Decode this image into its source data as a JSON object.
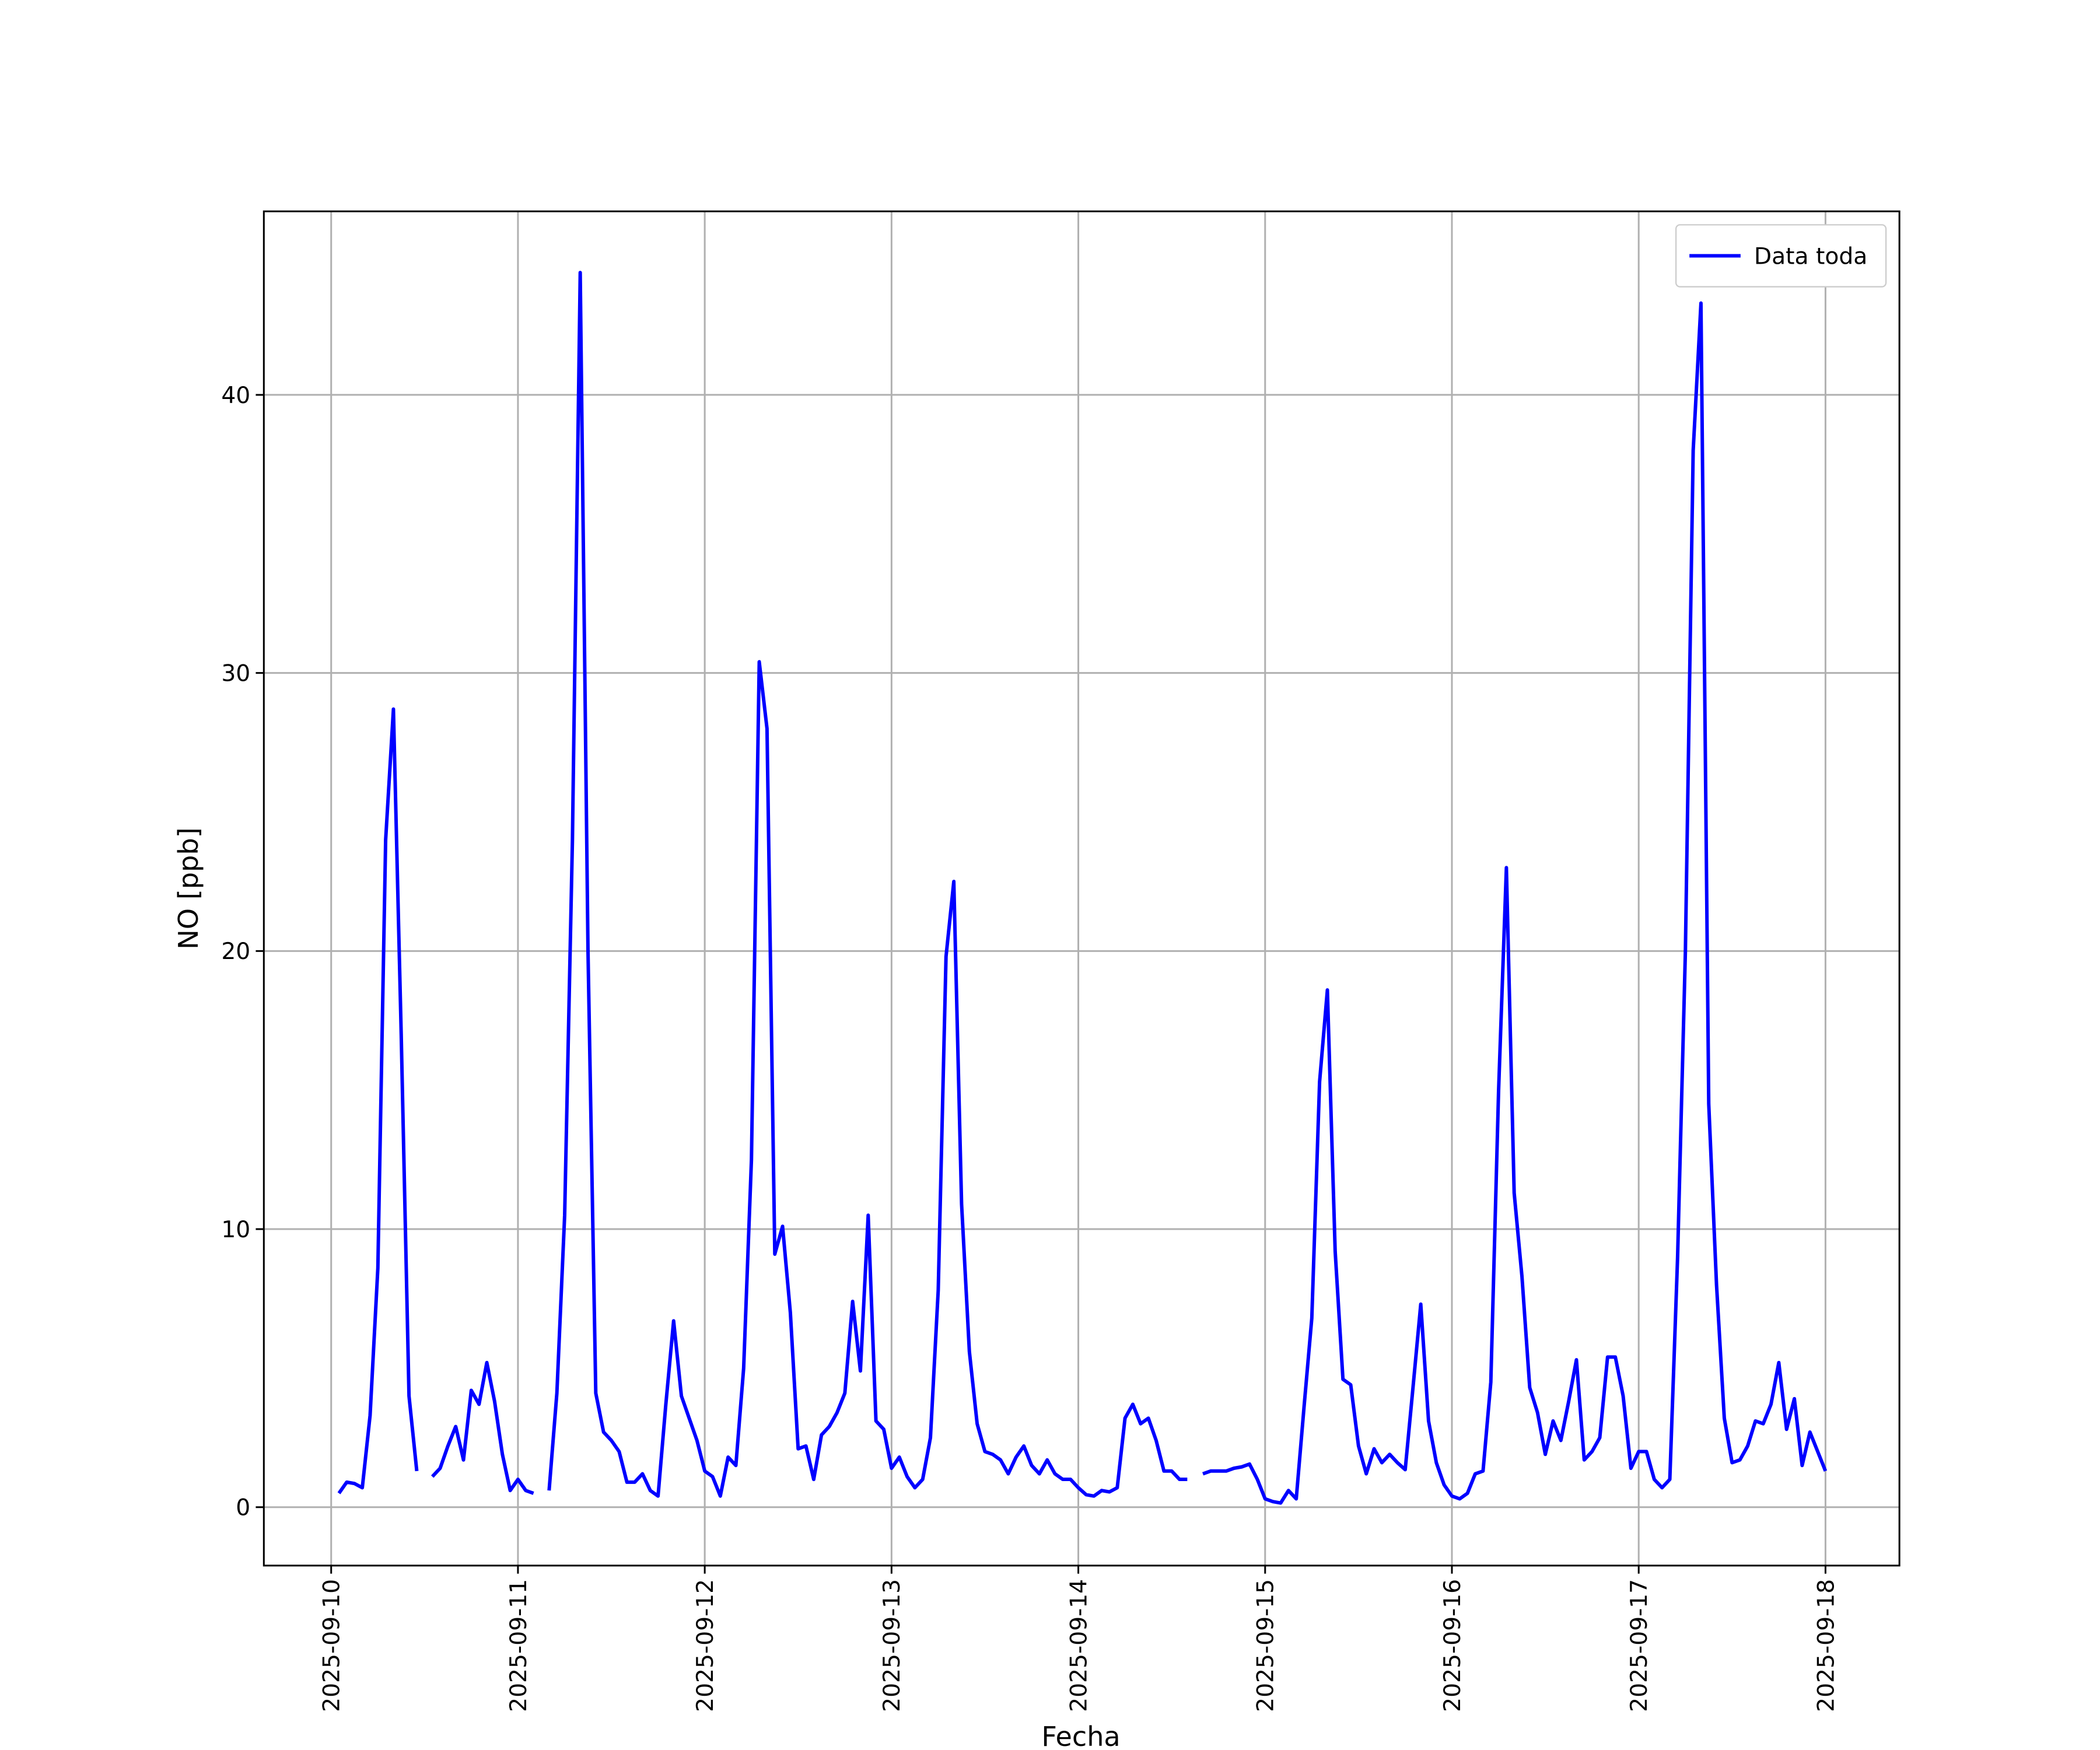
{
  "chart_data": {
    "type": "line",
    "xlabel": "Fecha",
    "ylabel": "NO [ppb]",
    "x": [
      1,
      2,
      3,
      4,
      5,
      6,
      7,
      8,
      9,
      10,
      11,
      12,
      13,
      14,
      15,
      16,
      17,
      18,
      19,
      20,
      21,
      22,
      23,
      24,
      25,
      26,
      27,
      28,
      29,
      30,
      31,
      32,
      33,
      34,
      35,
      36,
      37,
      38,
      39,
      40,
      41,
      42,
      43,
      44,
      45,
      46,
      47,
      48,
      49,
      50,
      51,
      52,
      53,
      54,
      55,
      56,
      57,
      58,
      59,
      60,
      61,
      62,
      63,
      64,
      65,
      66,
      67,
      68,
      69,
      70,
      71,
      72,
      73,
      74,
      75,
      76,
      77,
      78,
      79,
      80,
      81,
      82,
      83,
      84,
      85,
      86,
      87,
      88,
      89,
      90,
      91,
      92,
      93,
      94,
      95,
      96,
      97,
      98,
      99,
      100,
      101,
      102,
      103,
      104,
      105,
      106,
      107,
      108,
      109,
      110,
      111,
      112,
      113,
      114,
      115,
      116,
      117,
      118,
      119,
      120,
      121,
      122,
      123,
      124,
      125,
      126,
      127,
      128,
      129,
      130,
      131,
      132,
      133,
      134,
      135,
      136,
      137,
      138,
      139,
      140,
      141,
      142,
      143,
      144,
      145,
      146,
      147,
      148,
      149,
      150,
      151,
      152,
      153,
      154,
      155,
      156,
      157,
      158,
      159,
      160,
      161,
      162,
      163,
      164,
      165,
      166,
      167,
      168,
      169,
      170,
      171,
      172,
      173,
      174,
      175,
      176,
      177,
      178,
      179,
      180,
      181,
      182,
      183,
      184,
      185,
      186,
      187,
      188,
      189,
      190,
      191,
      192
    ],
    "series": [
      {
        "name": "Data toda",
        "color": "#0000ff",
        "values": [
          0.5,
          0.9,
          0.85,
          0.7,
          3.3,
          8.6,
          24,
          28.7,
          17,
          4.0,
          1.3,
          null,
          1.1,
          1.4,
          2.2,
          2.9,
          1.7,
          4.2,
          3.7,
          5.2,
          3.8,
          1.9,
          0.6,
          1.0,
          0.6,
          0.5,
          null,
          0.6,
          4.1,
          10.5,
          24,
          44.4,
          20,
          4.1,
          2.7,
          2.4,
          2.0,
          0.9,
          0.9,
          1.2,
          0.6,
          0.4,
          3.7,
          6.7,
          4.0,
          3.2,
          2.4,
          1.3,
          1.1,
          0.4,
          1.8,
          1.5,
          5.0,
          12.5,
          30.4,
          28,
          9.1,
          10.1,
          7.0,
          2.1,
          2.2,
          1.0,
          2.6,
          2.9,
          3.4,
          4.1,
          7.4,
          4.9,
          10.5,
          3.1,
          2.8,
          1.4,
          1.8,
          1.1,
          0.7,
          1.0,
          2.5,
          7.8,
          19.8,
          22.5,
          10.9,
          5.6,
          3.0,
          2.0,
          1.9,
          1.7,
          1.2,
          1.8,
          2.2,
          1.5,
          1.2,
          1.7,
          1.2,
          1.0,
          1.0,
          0.7,
          0.45,
          0.4,
          0.6,
          0.55,
          0.7,
          3.2,
          3.7,
          3.0,
          3.2,
          2.4,
          1.3,
          1.3,
          1.0,
          1.0,
          null,
          1.2,
          1.3,
          1.3,
          1.3,
          1.4,
          1.45,
          1.55,
          1.0,
          0.3,
          0.2,
          0.15,
          0.6,
          0.3,
          3.6,
          6.8,
          15.3,
          18.6,
          9.2,
          4.6,
          4.4,
          2.2,
          1.2,
          2.1,
          1.6,
          1.9,
          1.6,
          1.35,
          4.3,
          7.3,
          3.1,
          1.6,
          0.8,
          0.4,
          0.3,
          0.5,
          1.2,
          1.3,
          4.5,
          15,
          23.0,
          11.3,
          8.3,
          4.3,
          3.4,
          1.9,
          3.1,
          2.4,
          3.8,
          5.3,
          1.7,
          2.0,
          2.5,
          5.4,
          5.4,
          4.0,
          1.4,
          2.0,
          2.0,
          1.0,
          0.7,
          1.0,
          9.0,
          20.0,
          38,
          43.3,
          14.5,
          8.0,
          3.2,
          1.6,
          1.7,
          2.2,
          3.1,
          3.0,
          3.7,
          5.2,
          2.8,
          3.9,
          1.5,
          2.7,
          2.0,
          1.3
        ]
      }
    ],
    "xlim": [
      -8.65,
      201.5
    ],
    "xticks": [
      {
        "value": 0,
        "label": "2025-09-10"
      },
      {
        "value": 24,
        "label": "2025-09-11"
      },
      {
        "value": 48,
        "label": "2025-09-12"
      },
      {
        "value": 72,
        "label": "2025-09-13"
      },
      {
        "value": 96,
        "label": "2025-09-14"
      },
      {
        "value": 120,
        "label": "2025-09-15"
      },
      {
        "value": 144,
        "label": "2025-09-16"
      },
      {
        "value": 168,
        "label": "2025-09-17"
      },
      {
        "value": 192,
        "label": "2025-09-18"
      }
    ],
    "ylim": [
      -2.1,
      46.6
    ],
    "yticks": [
      0,
      10,
      20,
      30,
      40
    ],
    "grid": true,
    "legend": "upper right"
  }
}
